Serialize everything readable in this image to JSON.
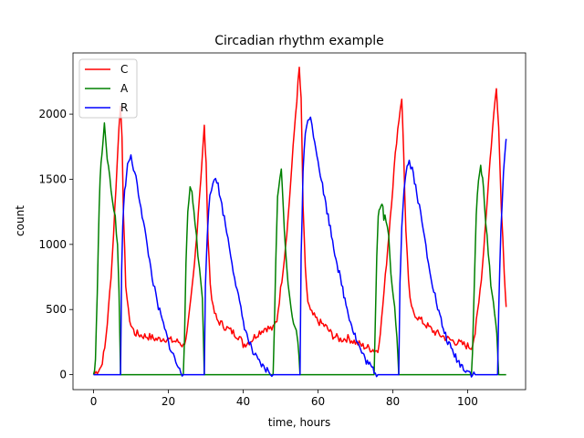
{
  "chart_data": {
    "type": "line",
    "title": "Circadian rhythm example",
    "xlabel": "time, hours",
    "ylabel": "count",
    "xlim": [
      -5.5,
      115.5
    ],
    "ylim": [
      -115,
      2470
    ],
    "xticks": [
      0,
      20,
      40,
      60,
      80,
      100
    ],
    "yticks": [
      0,
      500,
      1000,
      1500,
      2000
    ],
    "grid": false,
    "legend_position": "top-left",
    "series": [
      {
        "name": "C",
        "color": "#ff0000",
        "points": [
          [
            0,
            0
          ],
          [
            2,
            60
          ],
          [
            3,
            200
          ],
          [
            4,
            500
          ],
          [
            5,
            900
          ],
          [
            6,
            1450
          ],
          [
            6.8,
            1900
          ],
          [
            7.2,
            2080
          ],
          [
            7.6,
            1850
          ],
          [
            8,
            1200
          ],
          [
            8.6,
            700
          ],
          [
            9.3,
            480
          ],
          [
            10,
            380
          ],
          [
            11,
            320
          ],
          [
            13,
            300
          ],
          [
            15,
            290
          ],
          [
            17,
            270
          ],
          [
            19,
            280
          ],
          [
            21,
            260
          ],
          [
            23,
            250
          ],
          [
            24,
            220
          ],
          [
            25,
            320
          ],
          [
            26,
            560
          ],
          [
            27,
            850
          ],
          [
            28,
            1250
          ],
          [
            29,
            1650
          ],
          [
            29.6,
            1900
          ],
          [
            30.1,
            1600
          ],
          [
            30.6,
            1050
          ],
          [
            31.2,
            700
          ],
          [
            32,
            500
          ],
          [
            33,
            420
          ],
          [
            35,
            370
          ],
          [
            37,
            330
          ],
          [
            39,
            290
          ],
          [
            40,
            230
          ],
          [
            42,
            260
          ],
          [
            44,
            320
          ],
          [
            46,
            360
          ],
          [
            48,
            350
          ],
          [
            49,
            420
          ],
          [
            50,
            650
          ],
          [
            51,
            900
          ],
          [
            52,
            1200
          ],
          [
            53,
            1600
          ],
          [
            54,
            2000
          ],
          [
            55,
            2350
          ],
          [
            55.5,
            2100
          ],
          [
            56,
            1300
          ],
          [
            56.6,
            800
          ],
          [
            57.3,
            560
          ],
          [
            58,
            480
          ],
          [
            60,
            410
          ],
          [
            62,
            370
          ],
          [
            64,
            300
          ],
          [
            66,
            270
          ],
          [
            68,
            280
          ],
          [
            70,
            250
          ],
          [
            72,
            220
          ],
          [
            74,
            200
          ],
          [
            76,
            180
          ],
          [
            77,
            420
          ],
          [
            78,
            750
          ],
          [
            79,
            1100
          ],
          [
            80,
            1450
          ],
          [
            81,
            1800
          ],
          [
            82,
            2050
          ],
          [
            82.4,
            2130
          ],
          [
            82.9,
            1700
          ],
          [
            83.5,
            1100
          ],
          [
            84.2,
            700
          ],
          [
            85,
            500
          ],
          [
            87,
            430
          ],
          [
            89,
            380
          ],
          [
            91,
            330
          ],
          [
            93,
            300
          ],
          [
            95,
            270
          ],
          [
            97,
            250
          ],
          [
            99,
            230
          ],
          [
            101,
            210
          ],
          [
            102,
            320
          ],
          [
            103,
            550
          ],
          [
            104,
            850
          ],
          [
            105,
            1250
          ],
          [
            106,
            1650
          ],
          [
            107,
            2000
          ],
          [
            107.7,
            2220
          ],
          [
            108.3,
            1900
          ],
          [
            109,
            1300
          ],
          [
            109.8,
            800
          ],
          [
            110.3,
            520
          ]
        ]
      },
      {
        "name": "A",
        "color": "#008000",
        "points": [
          [
            0,
            0
          ],
          [
            0.5,
            120
          ],
          [
            1,
            650
          ],
          [
            1.5,
            1300
          ],
          [
            2,
            1650
          ],
          [
            2.5,
            1800
          ],
          [
            2.9,
            1910
          ],
          [
            3.3,
            1750
          ],
          [
            4,
            1600
          ],
          [
            5,
            1350
          ],
          [
            5.8,
            1200
          ],
          [
            6.4,
            1000
          ],
          [
            6.8,
            650
          ],
          [
            7.2,
            0
          ],
          [
            24,
            0
          ],
          [
            24.3,
            260
          ],
          [
            24.7,
            850
          ],
          [
            25.2,
            1280
          ],
          [
            25.8,
            1460
          ],
          [
            26.3,
            1420
          ],
          [
            26.8,
            1250
          ],
          [
            27.5,
            1050
          ],
          [
            28.3,
            820
          ],
          [
            29.1,
            580
          ],
          [
            29.6,
            0
          ],
          [
            48,
            0
          ],
          [
            48.3,
            300
          ],
          [
            48.7,
            850
          ],
          [
            49.2,
            1350
          ],
          [
            49.8,
            1480
          ],
          [
            50.2,
            1600
          ],
          [
            50.7,
            1300
          ],
          [
            51.3,
            950
          ],
          [
            52,
            700
          ],
          [
            52.8,
            500
          ],
          [
            53.8,
            380
          ],
          [
            54.6,
            250
          ],
          [
            55.2,
            0
          ],
          [
            75,
            0
          ],
          [
            75.3,
            400
          ],
          [
            75.7,
            900
          ],
          [
            76.1,
            1200
          ],
          [
            76.6,
            1270
          ],
          [
            77.1,
            1330
          ],
          [
            77.6,
            1200
          ],
          [
            78.2,
            1200
          ],
          [
            78.9,
            1050
          ],
          [
            79.5,
            800
          ],
          [
            80.5,
            500
          ],
          [
            81.1,
            300
          ],
          [
            81.6,
            0
          ],
          [
            101,
            0
          ],
          [
            101.3,
            150
          ],
          [
            101.8,
            700
          ],
          [
            102.3,
            1200
          ],
          [
            102.9,
            1500
          ],
          [
            103.5,
            1600
          ],
          [
            104,
            1500
          ],
          [
            104.5,
            1330
          ],
          [
            105.2,
            1050
          ],
          [
            106.2,
            700
          ],
          [
            107.2,
            480
          ],
          [
            107.8,
            300
          ],
          [
            108.3,
            0
          ],
          [
            110.3,
            0
          ]
        ]
      },
      {
        "name": "R",
        "color": "#0000ff",
        "points": [
          [
            0,
            0
          ],
          [
            7.2,
            0
          ],
          [
            7.5,
            800
          ],
          [
            7.8,
            1150
          ],
          [
            8.3,
            1400
          ],
          [
            8.8,
            1550
          ],
          [
            9.4,
            1650
          ],
          [
            10,
            1660
          ],
          [
            11,
            1550
          ],
          [
            12,
            1400
          ],
          [
            13,
            1230
          ],
          [
            14,
            1050
          ],
          [
            15,
            870
          ],
          [
            16,
            700
          ],
          [
            17,
            550
          ],
          [
            18,
            450
          ],
          [
            19,
            350
          ],
          [
            20,
            250
          ],
          [
            21,
            170
          ],
          [
            22,
            100
          ],
          [
            23,
            30
          ],
          [
            24,
            0
          ],
          [
            29.6,
            0
          ],
          [
            29.9,
            700
          ],
          [
            30.4,
            1100
          ],
          [
            31.1,
            1350
          ],
          [
            31.9,
            1470
          ],
          [
            32.6,
            1530
          ],
          [
            33.3,
            1450
          ],
          [
            34.3,
            1300
          ],
          [
            35.6,
            1100
          ],
          [
            37,
            870
          ],
          [
            38.4,
            640
          ],
          [
            39.7,
            450
          ],
          [
            41,
            300
          ],
          [
            42.6,
            170
          ],
          [
            44,
            100
          ],
          [
            45.5,
            50
          ],
          [
            47,
            20
          ],
          [
            48,
            0
          ],
          [
            55.2,
            0
          ],
          [
            55.5,
            900
          ],
          [
            56,
            1550
          ],
          [
            56.6,
            1850
          ],
          [
            57.3,
            1980
          ],
          [
            58,
            1960
          ],
          [
            58.8,
            1850
          ],
          [
            60,
            1650
          ],
          [
            61.5,
            1400
          ],
          [
            63,
            1170
          ],
          [
            64.5,
            940
          ],
          [
            66,
            730
          ],
          [
            67.5,
            540
          ],
          [
            69,
            380
          ],
          [
            70.5,
            250
          ],
          [
            72,
            150
          ],
          [
            73.5,
            80
          ],
          [
            75,
            30
          ],
          [
            76,
            0
          ],
          [
            81.6,
            0
          ],
          [
            81.9,
            700
          ],
          [
            82.4,
            1150
          ],
          [
            83,
            1430
          ],
          [
            83.8,
            1600
          ],
          [
            84.4,
            1640
          ],
          [
            85.2,
            1580
          ],
          [
            86.4,
            1400
          ],
          [
            87.8,
            1170
          ],
          [
            89.2,
            920
          ],
          [
            90.6,
            700
          ],
          [
            92,
            510
          ],
          [
            93.5,
            350
          ],
          [
            95,
            230
          ],
          [
            96.5,
            150
          ],
          [
            98,
            80
          ],
          [
            99.5,
            40
          ],
          [
            101,
            10
          ],
          [
            102,
            0
          ],
          [
            108,
            0
          ],
          [
            108.3,
            500
          ],
          [
            108.9,
            1100
          ],
          [
            109.6,
            1550
          ],
          [
            110.2,
            1800
          ],
          [
            110.3,
            1810
          ]
        ]
      }
    ]
  }
}
